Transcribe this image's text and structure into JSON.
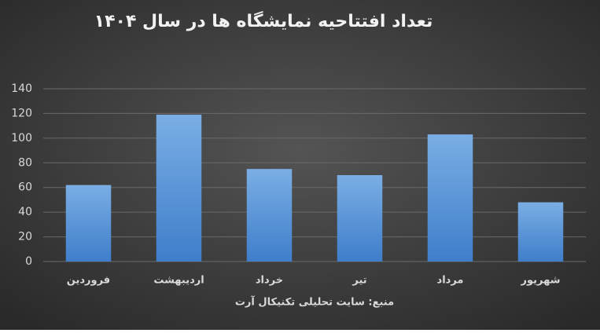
{
  "chart_data": {
    "type": "bar",
    "title": "تعداد افتتاحیه نمایشگاه ها در سال ۱۴۰۴",
    "x_label": "منبع: سایت تحلیلی تکنیکال آرت",
    "categories": [
      "فروردین",
      "اردیبهشت",
      "خرداد",
      "تیر",
      "مرداد",
      "شهریور"
    ],
    "values": [
      62,
      119,
      75,
      70,
      103,
      48
    ],
    "color": "#5b9bd5",
    "ylim": [
      0,
      140
    ],
    "yticks": [
      0,
      20,
      40,
      60,
      80,
      100,
      120,
      140
    ],
    "grid": true
  }
}
